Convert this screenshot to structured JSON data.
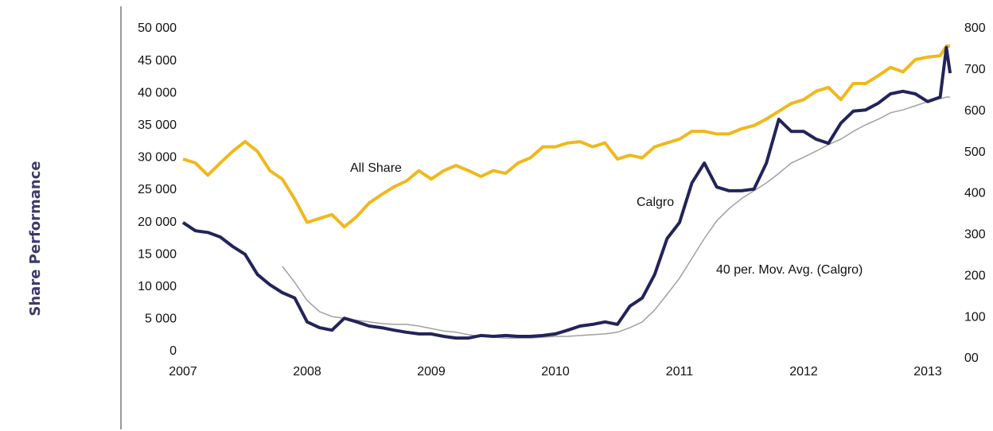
{
  "chart_data": {
    "type": "line",
    "y_label": "Share Performance",
    "x": [
      2007,
      2007.1,
      2007.2,
      2007.3,
      2007.4,
      2007.5,
      2007.6,
      2007.7,
      2007.8,
      2007.9,
      2008,
      2008.1,
      2008.2,
      2008.3,
      2008.4,
      2008.5,
      2008.6,
      2008.7,
      2008.8,
      2008.9,
      2009,
      2009.1,
      2009.2,
      2009.3,
      2009.4,
      2009.5,
      2009.6,
      2009.7,
      2009.8,
      2009.9,
      2010,
      2010.1,
      2010.2,
      2010.3,
      2010.4,
      2010.5,
      2010.6,
      2010.7,
      2010.8,
      2010.9,
      2011,
      2011.1,
      2011.2,
      2011.3,
      2011.4,
      2011.5,
      2011.6,
      2011.7,
      2011.8,
      2011.9,
      2012,
      2012.1,
      2012.2,
      2012.3,
      2012.4,
      2012.5,
      2012.6,
      2012.7,
      2012.8,
      2012.9,
      2013,
      2013.1,
      2013.15,
      2013.18
    ],
    "series": [
      {
        "name": "All Share",
        "color": "#f0b81c",
        "axis": "y",
        "values": [
          29800,
          29200,
          27300,
          29200,
          31000,
          32500,
          31000,
          28000,
          26700,
          23600,
          20000,
          20600,
          21200,
          19300,
          20900,
          23000,
          24300,
          25500,
          26400,
          28000,
          26700,
          28000,
          28800,
          28000,
          27100,
          28000,
          27600,
          29200,
          30000,
          31700,
          31700,
          32300,
          32500,
          31700,
          32300,
          29800,
          30400,
          30000,
          31700,
          32300,
          32900,
          34100,
          34100,
          33700,
          33700,
          34500,
          35000,
          36000,
          37200,
          38400,
          39000,
          40300,
          40900,
          39000,
          41500,
          41500,
          42700,
          44000,
          43300,
          45200,
          45600,
          45800,
          47300,
          47300
        ]
      },
      {
        "name": "Calgro",
        "color": "#23235b",
        "axis": "y2",
        "values": [
          330,
          310,
          306,
          295,
          272,
          253,
          204,
          179,
          160,
          147,
          89,
          75,
          69,
          98,
          89,
          79,
          75,
          69,
          64,
          60,
          60,
          54,
          50,
          50,
          56,
          54,
          56,
          54,
          54,
          56,
          60,
          69,
          79,
          83,
          89,
          83,
          127,
          147,
          204,
          291,
          330,
          426,
          474,
          416,
          407,
          407,
          411,
          474,
          580,
          551,
          551,
          532,
          522,
          571,
          600,
          603,
          619,
          642,
          648,
          642,
          623,
          634,
          754,
          692
        ]
      },
      {
        "name": "40 per. Mov. Avg. (Calgro)",
        "color": "#a0a0a0",
        "axis": "y2",
        "values": [
          null,
          null,
          null,
          null,
          null,
          null,
          null,
          null,
          224,
          185,
          141,
          114,
          102,
          98,
          93,
          89,
          85,
          83,
          83,
          79,
          73,
          67,
          64,
          58,
          54,
          52,
          50,
          50,
          50,
          52,
          54,
          54,
          56,
          58,
          60,
          64,
          75,
          89,
          118,
          156,
          195,
          243,
          291,
          334,
          364,
          388,
          407,
          426,
          449,
          474,
          488,
          503,
          519,
          532,
          551,
          567,
          580,
          596,
          603,
          613,
          623,
          630,
          634,
          634
        ]
      }
    ],
    "xlim": [
      2007,
      2013.25
    ],
    "xticks": [
      2007,
      2008,
      2009,
      2010,
      2011,
      2012,
      2013
    ],
    "ylim": [
      0,
      50000
    ],
    "yticks": [
      0,
      {
        "value": 5000,
        "label": "5 000"
      },
      {
        "value": 10000,
        "label": "10 000"
      },
      {
        "value": 15000,
        "label": "15 000"
      },
      {
        "value": 20000,
        "label": "20 000"
      },
      {
        "value": 25000,
        "label": "25 000"
      },
      {
        "value": 30000,
        "label": "30 000"
      },
      {
        "value": 35000,
        "label": "35 000"
      },
      {
        "value": 40000,
        "label": "40 000"
      },
      {
        "value": 45000,
        "label": "45 000"
      },
      {
        "value": 50000,
        "label": "50 000"
      }
    ],
    "y2lim": [
      0,
      800
    ],
    "y2ticks": [
      {
        "value": 0,
        "label": "00"
      },
      100,
      200,
      300,
      400,
      500,
      600,
      700,
      800
    ],
    "grid": false
  }
}
